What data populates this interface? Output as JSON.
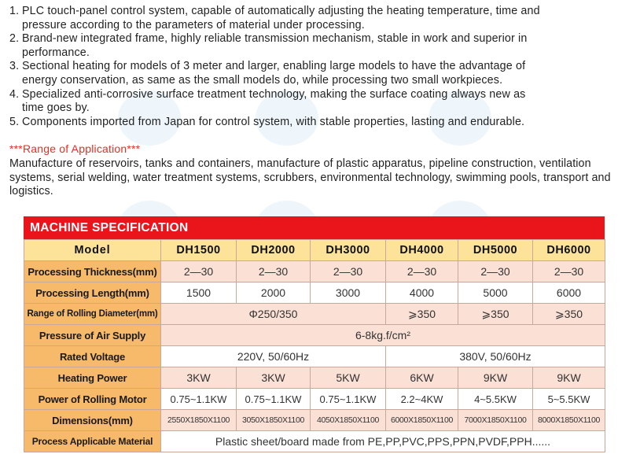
{
  "features": [
    {
      "num": "1.",
      "line1": "PLC touch-panel control system, capable of automatically adjusting the heating temperature, time and",
      "line2": "pressure according to the parameters of material under processing."
    },
    {
      "num": "2.",
      "line1": "Brand-new integrated frame, highly reliable transmission mechanism, stable in work and superior in",
      "line2": "performance."
    },
    {
      "num": "3.",
      "line1": "Sectional heating for models of 3 meter and larger, enabling large models to have the advantage of",
      "line2": "energy conservation, as same as the small models do, while processing two small workpieces."
    },
    {
      "num": "4.",
      "line1": "Specialized anti-corrosive surface treatment technology, making the surface coating always new as",
      "line2": "time goes by."
    },
    {
      "num": "5.",
      "line1": "Components imported from Japan for control system, with stable properties, lasting and endurable.",
      "line2": ""
    }
  ],
  "application": {
    "title": "***Range of Application***",
    "text": "Manufacture of reservoirs, tanks and containers, manufacture of plastic apparatus, pipeline construction, ventilation systems, serial welding, water treatment systems, scrubbers, environmental technology, swimming pools, transport and logistics."
  },
  "spec": {
    "heading": "MACHINE SPECIFICATION",
    "model_label": "Model",
    "models": [
      "DH1500",
      "DH2000",
      "DH3000",
      "DH4000",
      "DH5000",
      "DH6000"
    ],
    "rows": {
      "thickness": {
        "label": "Processing Thickness(mm)",
        "values": [
          "2—30",
          "2—30",
          "2—30",
          "2—30",
          "2—30",
          "2—30"
        ]
      },
      "length": {
        "label": "Processing Length(mm)",
        "values": [
          "1500",
          "2000",
          "3000",
          "4000",
          "5000",
          "6000"
        ]
      },
      "rolling_diameter": {
        "label": "Range of Rolling Diameter(mm)",
        "merged": "Φ250/350",
        "values": [
          "⩾350",
          "⩾350",
          "⩾350"
        ]
      },
      "air": {
        "label": "Pressure of Air Supply",
        "merged": "6-8kg.f/cm²"
      },
      "voltage": {
        "label": "Rated Voltage",
        "left": "220V, 50/60Hz",
        "right": "380V, 50/60Hz"
      },
      "heating": {
        "label": "Heating Power",
        "values": [
          "3KW",
          "3KW",
          "5KW",
          "6KW",
          "9KW",
          "9KW"
        ]
      },
      "rolling_motor": {
        "label": "Power of Rolling Motor",
        "values": [
          "0.75~1.1KW",
          "0.75~1.1KW",
          "0.75~1.1KW",
          "2.2~4KW",
          "4~5.5KW",
          "5~5.5KW"
        ]
      },
      "dimensions": {
        "label": "Dimensions(mm)",
        "values": [
          "2550X1850X1100",
          "3050X1850X1100",
          "4050X1850X1100",
          "6000X1850X1100",
          "7000X1850X1100",
          "8000X1850X1100"
        ]
      },
      "material": {
        "label": "Process Applicable Material",
        "merged": "Plastic sheet/board made from PE,PP,PVC,PPS,PPN,PVDF,PPH......"
      }
    }
  }
}
